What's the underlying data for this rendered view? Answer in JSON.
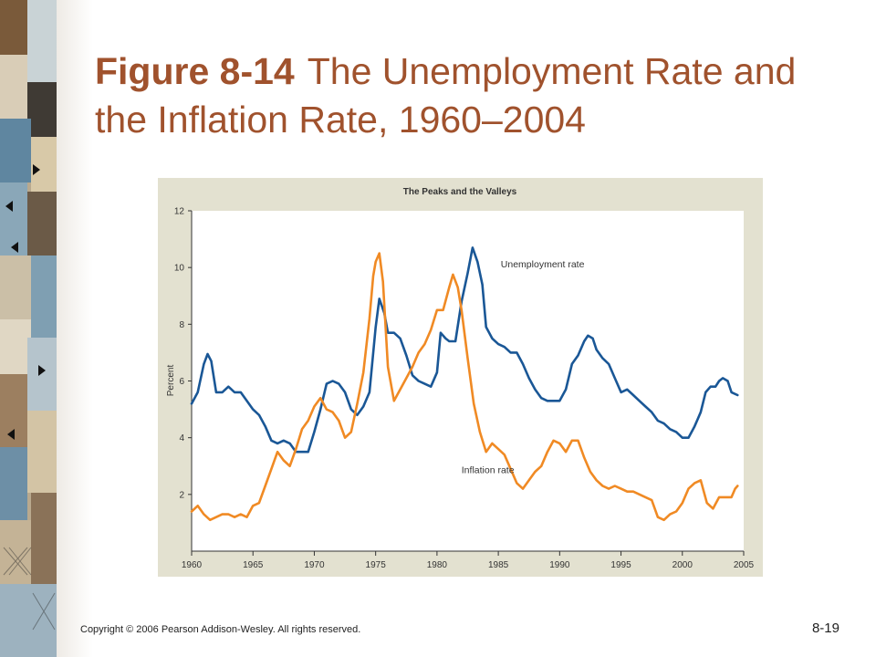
{
  "slide": {
    "title_number": "Figure 8-14",
    "title_text": "The Unemployment Rate and the Inflation Rate, 1960–2004",
    "copyright": "Copyright © 2006 Pearson Addison-Wesley. All rights reserved.",
    "page_number": "8-19"
  },
  "colors": {
    "title": "#a0522d",
    "panel": "#e3e1d0",
    "unemployment": "#1a5796",
    "inflation": "#f08a24"
  },
  "chart_data": {
    "type": "line",
    "title": "The Peaks and the Valleys",
    "xlabel": "",
    "ylabel": "Percent",
    "xlim": [
      1960,
      2005
    ],
    "ylim": [
      0,
      12
    ],
    "grid": false,
    "x_ticks": [
      "1960",
      "1965",
      "1970",
      "1975",
      "1980",
      "1985",
      "1990",
      "1995",
      "2000",
      "2005"
    ],
    "y_ticks": [
      "2",
      "4",
      "6",
      "8",
      "10",
      "12"
    ],
    "series": [
      {
        "name": "Unemployment rate",
        "color": "#1a5796",
        "points": [
          [
            1960,
            5.2
          ],
          [
            1960.5,
            5.6
          ],
          [
            1961,
            6.6
          ],
          [
            1961.3,
            6.95
          ],
          [
            1961.6,
            6.7
          ],
          [
            1962,
            5.6
          ],
          [
            1962.5,
            5.6
          ],
          [
            1963,
            5.8
          ],
          [
            1963.5,
            5.6
          ],
          [
            1964,
            5.6
          ],
          [
            1964.5,
            5.3
          ],
          [
            1965,
            5.0
          ],
          [
            1965.5,
            4.8
          ],
          [
            1966,
            4.4
          ],
          [
            1966.5,
            3.9
          ],
          [
            1967,
            3.8
          ],
          [
            1967.5,
            3.9
          ],
          [
            1968,
            3.8
          ],
          [
            1968.5,
            3.5
          ],
          [
            1969,
            3.5
          ],
          [
            1969.5,
            3.5
          ],
          [
            1970,
            4.2
          ],
          [
            1970.5,
            5.0
          ],
          [
            1971,
            5.9
          ],
          [
            1971.5,
            6.0
          ],
          [
            1972,
            5.9
          ],
          [
            1972.5,
            5.6
          ],
          [
            1973,
            5.0
          ],
          [
            1973.5,
            4.8
          ],
          [
            1974,
            5.1
          ],
          [
            1974.5,
            5.6
          ],
          [
            1975,
            7.9
          ],
          [
            1975.3,
            8.9
          ],
          [
            1975.7,
            8.4
          ],
          [
            1976,
            7.7
          ],
          [
            1976.5,
            7.7
          ],
          [
            1977,
            7.5
          ],
          [
            1977.5,
            6.9
          ],
          [
            1978,
            6.2
          ],
          [
            1978.5,
            6.0
          ],
          [
            1979,
            5.9
          ],
          [
            1979.5,
            5.8
          ],
          [
            1980,
            6.3
          ],
          [
            1980.3,
            7.7
          ],
          [
            1980.7,
            7.5
          ],
          [
            1981,
            7.4
          ],
          [
            1981.5,
            7.4
          ],
          [
            1982,
            8.8
          ],
          [
            1982.5,
            9.8
          ],
          [
            1982.9,
            10.7
          ],
          [
            1983.3,
            10.2
          ],
          [
            1983.7,
            9.4
          ],
          [
            1984,
            7.9
          ],
          [
            1984.5,
            7.5
          ],
          [
            1985,
            7.3
          ],
          [
            1985.5,
            7.2
          ],
          [
            1986,
            7.0
          ],
          [
            1986.5,
            7.0
          ],
          [
            1987,
            6.6
          ],
          [
            1987.5,
            6.1
          ],
          [
            1988,
            5.7
          ],
          [
            1988.5,
            5.4
          ],
          [
            1989,
            5.3
          ],
          [
            1989.5,
            5.3
          ],
          [
            1990,
            5.3
          ],
          [
            1990.5,
            5.7
          ],
          [
            1991,
            6.6
          ],
          [
            1991.5,
            6.9
          ],
          [
            1992,
            7.4
          ],
          [
            1992.3,
            7.6
          ],
          [
            1992.7,
            7.5
          ],
          [
            1993,
            7.1
          ],
          [
            1993.5,
            6.8
          ],
          [
            1994,
            6.6
          ],
          [
            1994.5,
            6.1
          ],
          [
            1995,
            5.6
          ],
          [
            1995.5,
            5.7
          ],
          [
            1996,
            5.5
          ],
          [
            1996.5,
            5.3
          ],
          [
            1997,
            5.1
          ],
          [
            1997.5,
            4.9
          ],
          [
            1998,
            4.6
          ],
          [
            1998.5,
            4.5
          ],
          [
            1999,
            4.3
          ],
          [
            1999.5,
            4.2
          ],
          [
            2000,
            4.0
          ],
          [
            2000.5,
            4.0
          ],
          [
            2001,
            4.4
          ],
          [
            2001.5,
            4.9
          ],
          [
            2001.9,
            5.6
          ],
          [
            2002.3,
            5.8
          ],
          [
            2002.7,
            5.8
          ],
          [
            2003,
            6.0
          ],
          [
            2003.3,
            6.1
          ],
          [
            2003.7,
            6.0
          ],
          [
            2004,
            5.6
          ],
          [
            2004.5,
            5.5
          ]
        ]
      },
      {
        "name": "Inflation rate",
        "color": "#f08a24",
        "points": [
          [
            1960,
            1.4
          ],
          [
            1960.5,
            1.6
          ],
          [
            1961,
            1.3
          ],
          [
            1961.5,
            1.1
          ],
          [
            1962,
            1.2
          ],
          [
            1962.5,
            1.3
          ],
          [
            1963,
            1.3
          ],
          [
            1963.5,
            1.2
          ],
          [
            1964,
            1.3
          ],
          [
            1964.5,
            1.2
          ],
          [
            1965,
            1.6
          ],
          [
            1965.5,
            1.7
          ],
          [
            1966,
            2.3
          ],
          [
            1966.5,
            2.9
          ],
          [
            1967,
            3.5
          ],
          [
            1967.5,
            3.2
          ],
          [
            1968,
            3.0
          ],
          [
            1968.5,
            3.6
          ],
          [
            1969,
            4.3
          ],
          [
            1969.5,
            4.6
          ],
          [
            1970,
            5.1
          ],
          [
            1970.5,
            5.4
          ],
          [
            1971,
            5.0
          ],
          [
            1971.5,
            4.9
          ],
          [
            1972,
            4.6
          ],
          [
            1972.5,
            4.0
          ],
          [
            1973,
            4.2
          ],
          [
            1973.5,
            5.2
          ],
          [
            1974,
            6.3
          ],
          [
            1974.5,
            8.2
          ],
          [
            1974.8,
            9.7
          ],
          [
            1975,
            10.2
          ],
          [
            1975.3,
            10.5
          ],
          [
            1975.6,
            9.5
          ],
          [
            1976,
            6.5
          ],
          [
            1976.5,
            5.3
          ],
          [
            1977,
            5.7
          ],
          [
            1977.5,
            6.1
          ],
          [
            1978,
            6.5
          ],
          [
            1978.5,
            7.0
          ],
          [
            1979,
            7.3
          ],
          [
            1979.5,
            7.8
          ],
          [
            1980,
            8.5
          ],
          [
            1980.5,
            8.5
          ],
          [
            1981,
            9.3
          ],
          [
            1981.3,
            9.75
          ],
          [
            1981.7,
            9.3
          ],
          [
            1982,
            8.5
          ],
          [
            1982.5,
            6.8
          ],
          [
            1983,
            5.2
          ],
          [
            1983.5,
            4.2
          ],
          [
            1984,
            3.5
          ],
          [
            1984.5,
            3.8
          ],
          [
            1985,
            3.6
          ],
          [
            1985.5,
            3.4
          ],
          [
            1986,
            2.9
          ],
          [
            1986.5,
            2.4
          ],
          [
            1987,
            2.2
          ],
          [
            1987.5,
            2.5
          ],
          [
            1988,
            2.8
          ],
          [
            1988.5,
            3.0
          ],
          [
            1989,
            3.5
          ],
          [
            1989.5,
            3.9
          ],
          [
            1990,
            3.8
          ],
          [
            1990.5,
            3.5
          ],
          [
            1991,
            3.9
          ],
          [
            1991.5,
            3.9
          ],
          [
            1992,
            3.3
          ],
          [
            1992.5,
            2.8
          ],
          [
            1993,
            2.5
          ],
          [
            1993.5,
            2.3
          ],
          [
            1994,
            2.2
          ],
          [
            1994.5,
            2.3
          ],
          [
            1995,
            2.2
          ],
          [
            1995.5,
            2.1
          ],
          [
            1996,
            2.1
          ],
          [
            1996.5,
            2.0
          ],
          [
            1997,
            1.9
          ],
          [
            1997.5,
            1.8
          ],
          [
            1998,
            1.2
          ],
          [
            1998.5,
            1.1
          ],
          [
            1999,
            1.3
          ],
          [
            1999.5,
            1.4
          ],
          [
            2000,
            1.7
          ],
          [
            2000.5,
            2.2
          ],
          [
            2001,
            2.4
          ],
          [
            2001.5,
            2.5
          ],
          [
            2002,
            1.7
          ],
          [
            2002.5,
            1.5
          ],
          [
            2003,
            1.9
          ],
          [
            2003.5,
            1.9
          ],
          [
            2004,
            1.9
          ],
          [
            2004.3,
            2.2
          ],
          [
            2004.5,
            2.3
          ]
        ]
      }
    ],
    "annotations": [
      {
        "text": "Unemployment rate",
        "x": 1985.2,
        "y": 10.0
      },
      {
        "text": "Inflation rate",
        "x": 1982,
        "y": 2.75
      }
    ]
  }
}
